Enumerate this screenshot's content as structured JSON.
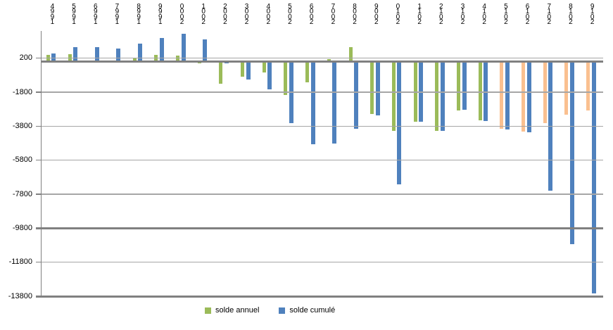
{
  "chart": {
    "legend": [
      {
        "label": "solde annuel",
        "color": "#9BBB59"
      },
      {
        "label": "solde cumulé",
        "color": "#4F81BD"
      }
    ]
  },
  "chart_data": {
    "type": "bar",
    "title": "",
    "xlabel": "",
    "ylabel": "",
    "categories": [
      1994,
      1995,
      1996,
      1997,
      1998,
      1999,
      2000,
      2001,
      2002,
      2003,
      2004,
      2005,
      2006,
      2007,
      2008,
      2009,
      2010,
      2011,
      2012,
      2013,
      2014,
      2015,
      2016,
      2017,
      2018,
      2019
    ],
    "series": [
      {
        "name": "solde annuel",
        "color": "#9BBB59",
        "alt_color": "#FAC090",
        "alt_from_year": 2015,
        "values": [
          400,
          450,
          0,
          0,
          240,
          380,
          360,
          -100,
          -1290,
          -880,
          -660,
          -1950,
          -1220,
          140,
          850,
          -3100,
          -4060,
          -3520,
          -4080,
          -2890,
          -3470,
          -3960,
          -4130,
          -3600,
          -3140,
          -2890
        ]
      },
      {
        "name": "solde cumulé",
        "color": "#4F81BD",
        "values": [
          480,
          840,
          860,
          760,
          1060,
          1380,
          1630,
          1290,
          -110,
          -1050,
          -1630,
          -3620,
          -4880,
          -4820,
          -3970,
          -3150,
          -7210,
          -3520,
          -4090,
          -2850,
          -3500,
          -3990,
          -4160,
          -7600,
          -10750,
          -13650
        ]
      }
    ],
    "ylim": [
      -13800,
      1800
    ],
    "yticks": [
      200,
      -1800,
      -3800,
      -5800,
      -7800,
      -9800,
      -11800,
      -13800
    ],
    "emphasized_gridlines": [
      -9800,
      -13800
    ],
    "zero_line": true,
    "grid": true,
    "legend_position": "bottom",
    "x_label_style": "vertical-stacked-reversed",
    "colors": {
      "grid": "#A6A6A6",
      "axis": "#808080",
      "text": "#000000",
      "background": "#FFFFFF"
    }
  }
}
